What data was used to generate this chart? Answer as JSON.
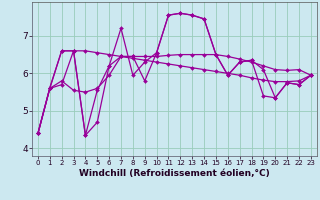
{
  "xlabel": "Windchill (Refroidissement éolien,°C)",
  "bg_color": "#cce8f0",
  "line_color": "#990099",
  "grid_color": "#99ccbb",
  "xlim": [
    -0.5,
    23.5
  ],
  "ylim": [
    3.8,
    7.9
  ],
  "xticks": [
    0,
    1,
    2,
    3,
    4,
    5,
    6,
    7,
    8,
    9,
    10,
    11,
    12,
    13,
    14,
    15,
    16,
    17,
    18,
    19,
    20,
    21,
    22,
    23
  ],
  "yticks": [
    4,
    5,
    6,
    7
  ],
  "series": [
    [
      4.4,
      5.6,
      5.7,
      6.6,
      4.35,
      4.7,
      6.2,
      7.2,
      5.95,
      6.3,
      6.55,
      7.55,
      7.6,
      7.55,
      7.45,
      6.5,
      5.95,
      6.3,
      6.35,
      6.1,
      5.35,
      5.75,
      5.7,
      5.95
    ],
    [
      4.4,
      5.62,
      6.6,
      6.6,
      6.6,
      6.55,
      6.5,
      6.45,
      6.4,
      6.35,
      6.3,
      6.25,
      6.2,
      6.15,
      6.1,
      6.05,
      6.0,
      5.95,
      5.88,
      5.82,
      5.78,
      5.78,
      5.8,
      5.95
    ],
    [
      4.4,
      5.6,
      5.8,
      5.55,
      5.5,
      5.6,
      5.95,
      6.45,
      6.45,
      6.45,
      6.45,
      6.48,
      6.5,
      6.5,
      6.5,
      6.5,
      6.45,
      6.38,
      6.3,
      6.2,
      6.1,
      6.08,
      6.1,
      5.95
    ],
    [
      4.4,
      5.6,
      6.6,
      6.6,
      4.35,
      5.55,
      6.2,
      6.45,
      6.45,
      5.8,
      6.55,
      7.55,
      7.6,
      7.55,
      7.45,
      6.5,
      5.95,
      6.3,
      6.35,
      5.4,
      5.35,
      5.75,
      5.7,
      5.95
    ]
  ],
  "marker": "D",
  "markersize": 2.0,
  "linewidth": 0.9,
  "xlabel_fontsize": 6.5,
  "xtick_fontsize": 5.0,
  "ytick_fontsize": 6.5,
  "spine_color": "#555555"
}
